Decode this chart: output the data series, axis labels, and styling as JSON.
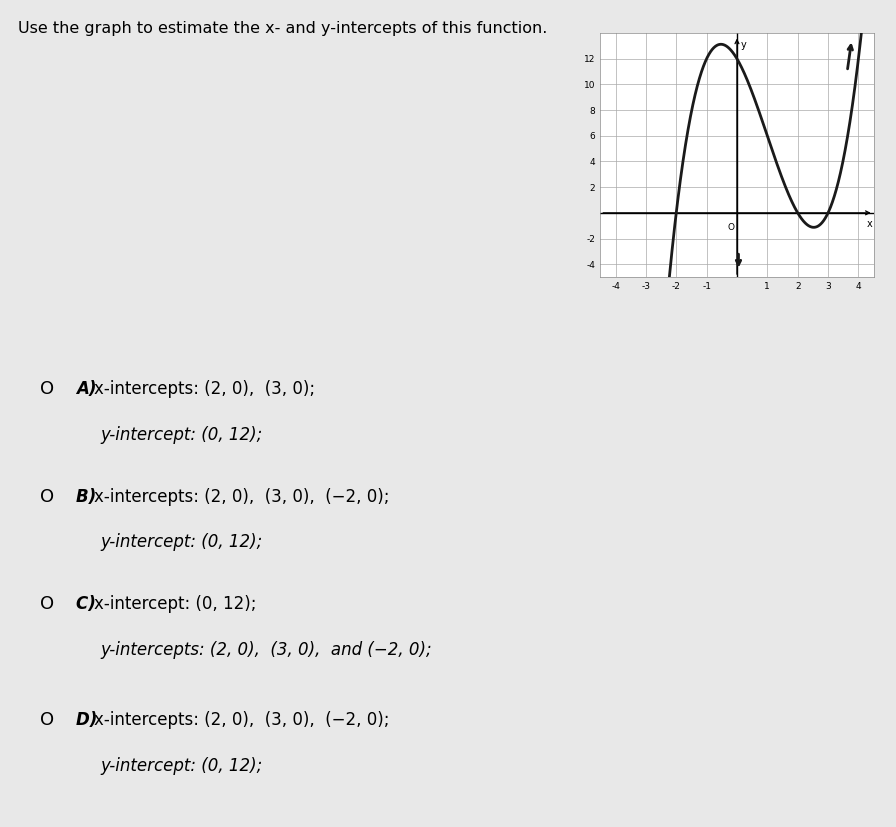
{
  "question_text": "Use the graph to estimate the x- and y-intercepts of this function.",
  "graph_xlim": [
    -4.5,
    4.5
  ],
  "graph_ylim": [
    -5,
    14
  ],
  "xticks": [
    -4,
    -3,
    -2,
    -1,
    1,
    2,
    3,
    4
  ],
  "yticks": [
    -4,
    -2,
    2,
    4,
    6,
    8,
    10,
    12
  ],
  "curve_color": "#1a1a1a",
  "curve_linewidth": 2.0,
  "grid_color": "#aaaaaa",
  "bg_color": "#c8c8c8",
  "paper_color": "#e8e8e8",
  "graph_facecolor": "#ffffff",
  "answers": [
    [
      "A)",
      "x-intercepts: (2, 0),  (3, 0);",
      "y-intercept: (0, 12);"
    ],
    [
      "B)",
      "x-intercepts: (2, 0),  (3, 0),  (−2, 0);",
      "y-intercept: (0, 12);"
    ],
    [
      "C)",
      "x-intercept: (0, 12);",
      "y-intercepts: (2, 0),  (3, 0),  and (−2, 0);"
    ],
    [
      "D)",
      "x-intercepts: (2, 0),  (3, 0),  (−2, 0);",
      "y-intercept: (0, 12);"
    ]
  ]
}
